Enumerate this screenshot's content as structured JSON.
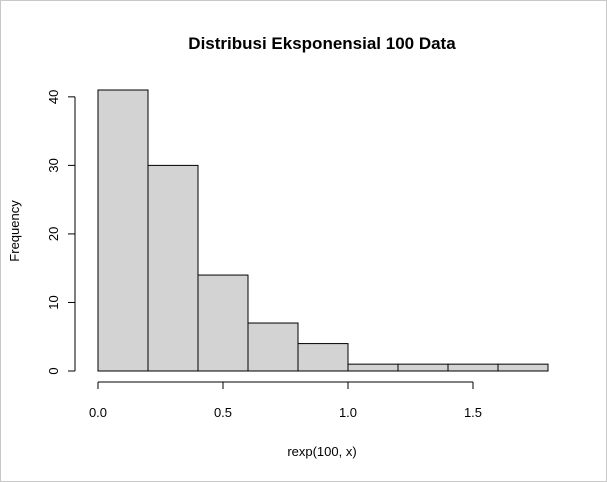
{
  "chart_data": {
    "type": "bar",
    "title": "Distribusi Eksponensial 100 Data",
    "xlabel": "rexp(100, x)",
    "ylabel": "Frequency",
    "bins": [
      {
        "x0": 0.0,
        "x1": 0.2,
        "count": 41
      },
      {
        "x0": 0.2,
        "x1": 0.4,
        "count": 30
      },
      {
        "x0": 0.4,
        "x1": 0.6,
        "count": 14
      },
      {
        "x0": 0.6,
        "x1": 0.8,
        "count": 7
      },
      {
        "x0": 0.8,
        "x1": 1.0,
        "count": 4
      },
      {
        "x0": 1.0,
        "x1": 1.2,
        "count": 1
      },
      {
        "x0": 1.2,
        "x1": 1.4,
        "count": 1
      },
      {
        "x0": 1.4,
        "x1": 1.6,
        "count": 1
      },
      {
        "x0": 1.6,
        "x1": 1.8,
        "count": 1
      }
    ],
    "xticks": [
      0.0,
      0.5,
      1.0,
      1.5
    ],
    "xtick_labels": [
      "0.0",
      "0.5",
      "1.0",
      "1.5"
    ],
    "yticks": [
      0,
      10,
      20,
      30,
      40
    ],
    "ytick_labels": [
      "0",
      "10",
      "20",
      "30",
      "40"
    ],
    "xlim": [
      0,
      1.8
    ],
    "ylim": [
      0,
      41
    ],
    "bar_fill": "#d3d3d3",
    "bar_stroke": "#000000",
    "grid": false,
    "legend": "none"
  }
}
